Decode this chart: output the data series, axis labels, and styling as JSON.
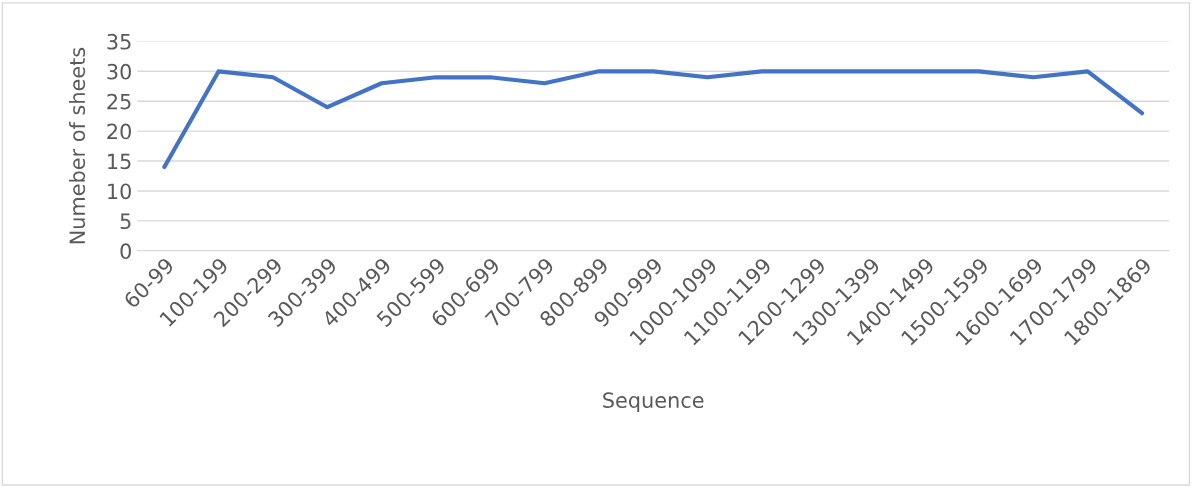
{
  "chart_data": {
    "type": "line",
    "xlabel": "Sequence",
    "ylabel": "Numeber of sheets",
    "categories": [
      "60-99",
      "100-199",
      "200-299",
      "300-399",
      "400-499",
      "500-599",
      "600-699",
      "700-799",
      "800-899",
      "900-999",
      "1000-1099",
      "1100-1199",
      "1200-1299",
      "1300-1399",
      "1400-1499",
      "1500-1599",
      "1600-1699",
      "1700-1799",
      "1800-1869"
    ],
    "series": [
      {
        "color": "#4472c4",
        "values": [
          14,
          30,
          29,
          24,
          28,
          29,
          29,
          28,
          30,
          30,
          29,
          30,
          30,
          30,
          30,
          30,
          29,
          30,
          23
        ]
      }
    ],
    "ylim": [
      0,
      35
    ],
    "yticks": [
      0,
      5,
      10,
      15,
      20,
      25,
      30,
      35
    ],
    "grid": "y",
    "line_style": "solid",
    "marker": "none"
  }
}
